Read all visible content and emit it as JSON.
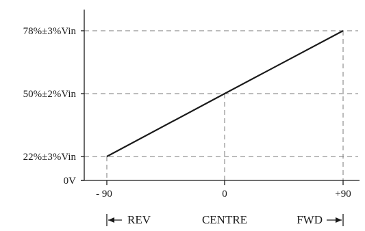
{
  "chart_data": {
    "type": "line",
    "x": [
      -90,
      0,
      90
    ],
    "y_labels": {
      "high": "78%±3%Vin",
      "mid": "50%±2%Vin",
      "low": "22%±3%Vin",
      "zero": "0V"
    },
    "y_values_percent": [
      22,
      50,
      78
    ],
    "ylim": [
      0,
      100
    ],
    "xlim": [
      -110,
      110
    ],
    "x_tick_labels": [
      "- 90",
      "0",
      "+90"
    ],
    "direction_labels": {
      "reverse": "REV",
      "centre": "CENTRE",
      "forward": "FWD"
    },
    "grid": false,
    "guides": "dashed"
  }
}
